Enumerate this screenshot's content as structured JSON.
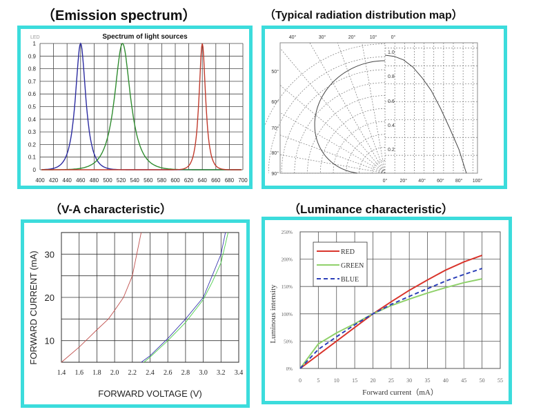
{
  "headings": {
    "emission": "（Emission spectrum）",
    "radiation": "（Typical radiation distribution map）",
    "va": "（V-A characteristic）",
    "luminance": "（Luminance characteristic）"
  },
  "colors": {
    "panel_border": "#3cdcdc",
    "red": "#c0392b",
    "green": "#2e8b2e",
    "blue": "#2a2aa0"
  },
  "chart_data": [
    {
      "type": "line",
      "title": "Spectrum of light sources",
      "corner_label": "LED",
      "xlabel": "",
      "ylabel": "",
      "xlim": [
        400,
        700
      ],
      "ylim": [
        0,
        1
      ],
      "x_ticks": [
        "400",
        "420",
        "440",
        "460",
        "480",
        "500",
        "520",
        "540",
        "560",
        "580",
        "600",
        "620",
        "640",
        "660",
        "680",
        "700"
      ],
      "y_ticks": [
        "0",
        "0.1",
        "0.2",
        "0.3",
        "0.4",
        "0.5",
        "0.6",
        "0.7",
        "0.8",
        "0.9",
        "1"
      ],
      "grid": true,
      "series": [
        {
          "name": "Blue",
          "color": "#2a2aa0",
          "peak": 460,
          "width": 11
        },
        {
          "name": "Green",
          "color": "#2e8b2e",
          "peak": 522,
          "width": 17
        },
        {
          "name": "Red",
          "color": "#c0392b",
          "peak": 640,
          "width": 7
        }
      ]
    },
    {
      "type": "line",
      "title": "Typical radiation distribution map",
      "top_angle_ticks": [
        "40°",
        "30°",
        "20°",
        "10°",
        "0°"
      ],
      "left_angle_ticks": [
        "50°",
        "60°",
        "70°",
        "80°",
        "90°"
      ],
      "radial_ticks": [
        "1.0",
        "0.8",
        "0.6",
        "0.4",
        "0.2"
      ],
      "bottom_ticks": [
        "0°",
        "20°",
        "40°",
        "60°",
        "80°",
        "100°"
      ],
      "xlim": [
        0,
        100
      ],
      "ylim": [
        0,
        1
      ],
      "series": [
        {
          "name": "Relative intensity",
          "x": [
            0,
            10,
            20,
            30,
            40,
            50,
            60,
            70,
            80,
            88
          ],
          "y": [
            1.0,
            0.99,
            0.96,
            0.9,
            0.81,
            0.7,
            0.55,
            0.38,
            0.2,
            0.0
          ]
        }
      ]
    },
    {
      "type": "line",
      "title": "V-A characteristic",
      "xlabel": "FORWARD VOLTAGE (V)",
      "ylabel": "FORWARD CURRENT (mA)",
      "xlim": [
        1.4,
        3.4
      ],
      "ylim": [
        5,
        35
      ],
      "x_ticks": [
        "1.4",
        "1.6",
        "1.8",
        "2.0",
        "2.2",
        "2.4",
        "2.6",
        "2.8",
        "3.0",
        "3.2",
        "3.4"
      ],
      "y_ticks": [
        "10",
        "20",
        "30"
      ],
      "grid": true,
      "series": [
        {
          "name": "Red",
          "color": "#c0504d",
          "x": [
            1.4,
            1.6,
            1.8,
            1.93,
            2.0,
            2.1,
            2.2,
            2.3
          ],
          "y": [
            5,
            8.5,
            12.5,
            15.0,
            17.0,
            20.0,
            25.0,
            35.0
          ]
        },
        {
          "name": "Blue",
          "color": "#3a3ab0",
          "x": [
            2.3,
            2.4,
            2.6,
            2.8,
            3.0,
            3.1,
            3.2,
            3.25
          ],
          "y": [
            5,
            6.5,
            10.5,
            15.0,
            20.0,
            25.0,
            30.0,
            35.0
          ]
        },
        {
          "name": "Green",
          "color": "#4ccc4c",
          "x": [
            2.33,
            2.4,
            2.6,
            2.8,
            3.0,
            3.1,
            3.2,
            3.28
          ],
          "y": [
            5,
            6.2,
            10.0,
            14.2,
            19.5,
            23.5,
            28.0,
            35.0
          ]
        }
      ]
    },
    {
      "type": "line",
      "title": "Luminance characteristic",
      "xlabel": "Forward current（mA）",
      "ylabel": "Luminous intensity",
      "xlim": [
        0,
        55
      ],
      "ylim": [
        0,
        250
      ],
      "x_ticks": [
        "0",
        "5",
        "10",
        "15",
        "20",
        "25",
        "30",
        "35",
        "40",
        "45",
        "50",
        "55"
      ],
      "y_ticks": [
        "0%",
        "50%",
        "100%",
        "150%",
        "200%",
        "250%"
      ],
      "legend_position": "top-left",
      "grid": true,
      "series": [
        {
          "name": "RED",
          "color": "#d9342b",
          "dash": false,
          "x": [
            0,
            5,
            10,
            15,
            20,
            25,
            30,
            35,
            40,
            45,
            50
          ],
          "y": [
            0,
            25,
            50,
            75,
            100,
            122,
            143,
            162,
            180,
            195,
            207
          ]
        },
        {
          "name": "GREEN",
          "color": "#8fd16a",
          "dash": false,
          "x": [
            0,
            5,
            10,
            15,
            20,
            25,
            30,
            35,
            40,
            45,
            50
          ],
          "y": [
            0,
            45,
            65,
            82,
            100,
            115,
            127,
            138,
            148,
            157,
            164
          ]
        },
        {
          "name": "BLUE",
          "color": "#2b3fb8",
          "dash": true,
          "x": [
            0,
            5,
            10,
            15,
            20,
            25,
            30,
            35,
            40,
            45,
            50
          ],
          "y": [
            0,
            35,
            58,
            80,
            100,
            117,
            132,
            146,
            160,
            172,
            183
          ]
        }
      ]
    }
  ]
}
